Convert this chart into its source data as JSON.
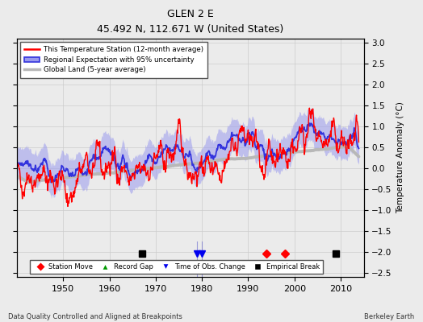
{
  "title": "GLEN 2 E",
  "subtitle": "45.492 N, 112.671 W (United States)",
  "ylabel": "Temperature Anomaly (°C)",
  "footer_left": "Data Quality Controlled and Aligned at Breakpoints",
  "footer_right": "Berkeley Earth",
  "xlim": [
    1940,
    2015
  ],
  "ylim": [
    -2.6,
    3.1
  ],
  "yticks": [
    -2.5,
    -2.0,
    -1.5,
    -1.0,
    -0.5,
    0.0,
    0.5,
    1.0,
    1.5,
    2.0,
    2.5,
    3.0
  ],
  "xticks": [
    1950,
    1960,
    1970,
    1980,
    1990,
    2000,
    2010
  ],
  "background_color": "#ebebeb",
  "station_color": "#ff0000",
  "regional_color": "#3333dd",
  "regional_fill_color": "#9999ee",
  "global_color": "#b8b8b8",
  "grid_color": "#cccccc",
  "legend_labels": [
    "This Temperature Station (12-month average)",
    "Regional Expectation with 95% uncertainty",
    "Global Land (5-year average)"
  ],
  "marker_labels": [
    "Station Move",
    "Record Gap",
    "Time of Obs. Change",
    "Empirical Break"
  ],
  "station_move_years": [
    1994,
    1998
  ],
  "empirical_break_years": [
    1967,
    2009
  ],
  "time_obs_years": [
    1979,
    1980
  ],
  "record_gap_years": [],
  "seed": 42
}
